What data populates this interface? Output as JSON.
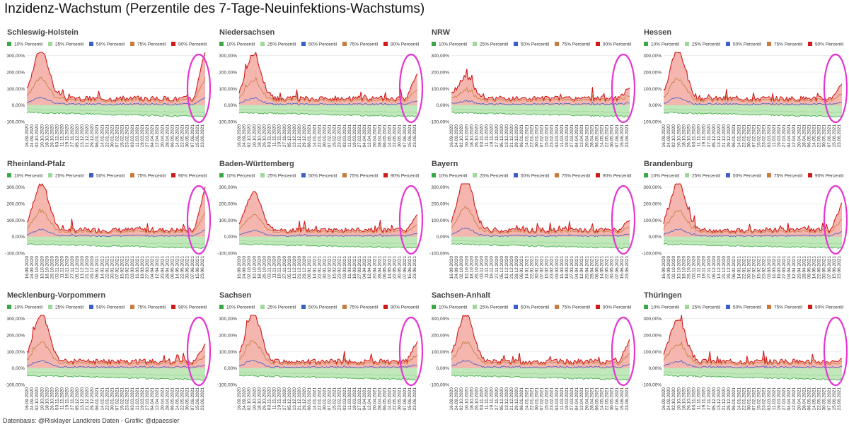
{
  "title": "Inzidenz-Wachstum (Perzentile des 7-Tage-Neuinfektions-Wachstums)",
  "footer": "Datenbasis: @Risklayer Landkreis Daten - Grafik: @dpaessler",
  "colors": {
    "p10": "#3aa846",
    "p25": "#9ed89a",
    "p50": "#3a5fc8",
    "p75": "#c87b3b",
    "p90": "#d11a1a",
    "band_upper": "#f2a9a0",
    "band_lower": "#b9e6b3",
    "highlight": "#e535d2"
  },
  "chart_data": [
    {
      "type": "area",
      "title": "Schleswig-Holstein",
      "series": [
        {
          "name": "10% Percentil"
        },
        {
          "name": "25% Percentil"
        },
        {
          "name": "50% Percentil"
        },
        {
          "name": "75% Percentil"
        },
        {
          "name": "90% Percentil"
        }
      ],
      "y_ticks": [
        "300,00%",
        "200,00%",
        "100,00%",
        "0,00%",
        "-100,00%"
      ],
      "ylim": [
        -100,
        320
      ],
      "x_ticks": [
        "16.09.2020",
        "24.09.2020",
        "02.10.2020",
        "10.10.2020",
        "18.10.2020",
        "26.10.2020",
        "03.11.2020",
        "11.11.2020",
        "19.11.2020",
        "27.11.2020",
        "05.12.2020",
        "13.12.2020",
        "21.12.2020",
        "29.12.2020",
        "06.01.2021",
        "14.01.2021",
        "22.01.2021",
        "30.01.2021",
        "07.02.2021",
        "15.02.2021",
        "23.02.2021",
        "03.03.2021",
        "11.03.2021",
        "19.03.2021",
        "27.03.2021",
        "04.04.2021",
        "12.04.2021",
        "20.04.2021",
        "28.04.2021",
        "06.05.2021",
        "14.05.2021",
        "22.05.2021",
        "30.05.2021",
        "07.06.2021",
        "15.06.2021",
        "23.06.2021"
      ],
      "peak": 340,
      "ending": 340
    },
    {
      "type": "area",
      "title": "Niedersachsen",
      "series": [
        {
          "name": "10% Percentil"
        },
        {
          "name": "25% Percentil"
        },
        {
          "name": "50% Percentil"
        },
        {
          "name": "75% Percentil"
        },
        {
          "name": "90% Percentil"
        }
      ],
      "y_ticks": [
        "300,00%",
        "200,00%",
        "100,00%",
        "0,00%",
        "-100,00%"
      ],
      "ylim": [
        -100,
        320
      ],
      "x_ticks": [
        "16.09.2020",
        "24.09.2020",
        "02.10.2020",
        "10.10.2020",
        "18.10.2020",
        "26.10.2020",
        "03.11.2020",
        "11.11.2020",
        "19.11.2020",
        "27.11.2020",
        "05.12.2020",
        "13.12.2020",
        "21.12.2020",
        "29.12.2020",
        "06.01.2021",
        "14.01.2021",
        "22.01.2021",
        "30.01.2021",
        "07.02.2021",
        "15.02.2021",
        "23.02.2021",
        "03.03.2021",
        "11.03.2021",
        "19.03.2021",
        "27.03.2021",
        "04.04.2021",
        "12.04.2021",
        "20.04.2021",
        "28.04.2021",
        "06.05.2021",
        "14.05.2021",
        "22.05.2021",
        "30.05.2021",
        "07.06.2021",
        "15.06.2021",
        "23.06.2021"
      ],
      "peak": 310,
      "ending": 200
    },
    {
      "type": "area",
      "title": "NRW",
      "series": [
        {
          "name": "10% Percentil"
        },
        {
          "name": "25% Percentil"
        },
        {
          "name": "50% Percentil"
        },
        {
          "name": "75% Percentil"
        },
        {
          "name": "90% Percentil"
        }
      ],
      "y_ticks": [
        "300,00%",
        "200,00%",
        "100,00%",
        "0,00%",
        "-100,00%"
      ],
      "ylim": [
        -100,
        320
      ],
      "x_ticks": [
        "16.09.2020",
        "24.09.2020",
        "02.10.2020",
        "10.10.2020",
        "18.10.2020",
        "26.10.2020",
        "03.11.2020",
        "11.11.2020",
        "19.11.2020",
        "27.11.2020",
        "05.12.2020",
        "13.12.2020",
        "21.12.2020",
        "29.12.2020",
        "06.01.2021",
        "14.01.2021",
        "22.01.2021",
        "30.01.2021",
        "07.02.2021",
        "15.02.2021",
        "23.02.2021",
        "03.03.2021",
        "11.03.2021",
        "19.03.2021",
        "27.03.2021",
        "04.04.2021",
        "12.04.2021",
        "20.04.2021",
        "28.04.2021",
        "06.05.2021",
        "14.05.2021",
        "22.05.2021",
        "30.05.2021",
        "07.06.2021",
        "15.06.2021",
        "23.06.2021"
      ],
      "peak": 170,
      "ending": 110
    },
    {
      "type": "area",
      "title": "Hessen",
      "series": [
        {
          "name": "10% Percentil"
        },
        {
          "name": "25% Percentil"
        },
        {
          "name": "50% Percentil"
        },
        {
          "name": "75% Percentil"
        },
        {
          "name": "90% Percentil"
        }
      ],
      "y_ticks": [
        "300,00%",
        "200,00%",
        "100,00%",
        "0,00%",
        "-100,00%"
      ],
      "ylim": [
        -100,
        320
      ],
      "x_ticks": [
        "16.09.2020",
        "24.09.2020",
        "02.10.2020",
        "10.10.2020",
        "18.10.2020",
        "26.10.2020",
        "03.11.2020",
        "11.11.2020",
        "19.11.2020",
        "27.11.2020",
        "05.12.2020",
        "13.12.2020",
        "21.12.2020",
        "29.12.2020",
        "06.01.2021",
        "14.01.2021",
        "22.01.2021",
        "30.01.2021",
        "07.02.2021",
        "15.02.2021",
        "23.02.2021",
        "03.03.2021",
        "11.03.2021",
        "19.03.2021",
        "27.03.2021",
        "04.04.2021",
        "12.04.2021",
        "20.04.2021",
        "28.04.2021",
        "06.05.2021",
        "14.05.2021",
        "22.05.2021",
        "30.05.2021",
        "07.06.2021",
        "15.06.2021",
        "23.06.2021"
      ],
      "peak": 330,
      "ending": 130
    },
    {
      "type": "area",
      "title": "Rheinland-Pfalz",
      "series": [
        {
          "name": "10% Percentil"
        },
        {
          "name": "25% Percentil"
        },
        {
          "name": "50% Percentil"
        },
        {
          "name": "75% Percentil"
        },
        {
          "name": "90% Percentil"
        }
      ],
      "y_ticks": [
        "300,00%",
        "200,00%",
        "100,00%",
        "0,00%",
        "-100,00%"
      ],
      "ylim": [
        -100,
        320
      ],
      "x_ticks": [
        "16.09.2020",
        "24.09.2020",
        "02.10.2020",
        "10.10.2020",
        "18.10.2020",
        "26.10.2020",
        "03.11.2020",
        "11.11.2020",
        "19.11.2020",
        "27.11.2020",
        "05.12.2020",
        "13.12.2020",
        "21.12.2020",
        "29.12.2020",
        "06.01.2021",
        "14.01.2021",
        "22.01.2021",
        "30.01.2021",
        "07.02.2021",
        "15.02.2021",
        "23.02.2021",
        "03.03.2021",
        "11.03.2021",
        "19.03.2021",
        "27.03.2021",
        "04.04.2021",
        "12.04.2021",
        "20.04.2021",
        "28.04.2021",
        "06.05.2021",
        "14.05.2021",
        "22.05.2021",
        "30.05.2021",
        "07.06.2021",
        "15.06.2021",
        "23.06.2021"
      ],
      "peak": 320,
      "ending": 300
    },
    {
      "type": "area",
      "title": "Baden-Württemberg",
      "series": [
        {
          "name": "10% Percentil"
        },
        {
          "name": "25% Percentil"
        },
        {
          "name": "50% Percentil"
        },
        {
          "name": "75% Percentil"
        },
        {
          "name": "90% Percentil"
        }
      ],
      "y_ticks": [
        "300,00%",
        "200,00%",
        "100,00%",
        "0,00%",
        "-100,00%"
      ],
      "ylim": [
        -100,
        320
      ],
      "x_ticks": [
        "16.09.2020",
        "24.09.2020",
        "02.10.2020",
        "10.10.2020",
        "18.10.2020",
        "26.10.2020",
        "03.11.2020",
        "11.11.2020",
        "19.11.2020",
        "27.11.2020",
        "05.12.2020",
        "13.12.2020",
        "21.12.2020",
        "29.12.2020",
        "06.01.2021",
        "14.01.2021",
        "22.01.2021",
        "30.01.2021",
        "07.02.2021",
        "15.02.2021",
        "23.02.2021",
        "03.03.2021",
        "11.03.2021",
        "19.03.2021",
        "27.03.2021",
        "04.04.2021",
        "12.04.2021",
        "20.04.2021",
        "28.04.2021",
        "06.05.2021",
        "14.05.2021",
        "22.05.2021",
        "30.05.2021",
        "07.06.2021",
        "15.06.2021",
        "23.06.2021"
      ],
      "peak": 270,
      "ending": 130
    },
    {
      "type": "area",
      "title": "Bayern",
      "series": [
        {
          "name": "10% Percentil"
        },
        {
          "name": "25% Percentil"
        },
        {
          "name": "50% Percentil"
        },
        {
          "name": "75% Percentil"
        },
        {
          "name": "90% Percentil"
        }
      ],
      "y_ticks": [
        "300,00%",
        "200,00%",
        "100,00%",
        "0,00%",
        "-100,00%"
      ],
      "ylim": [
        -100,
        320
      ],
      "x_ticks": [
        "16.09.2020",
        "24.09.2020",
        "02.10.2020",
        "10.10.2020",
        "18.10.2020",
        "26.10.2020",
        "03.11.2020",
        "11.11.2020",
        "19.11.2020",
        "27.11.2020",
        "05.12.2020",
        "13.12.2020",
        "21.12.2020",
        "29.12.2020",
        "06.01.2021",
        "14.01.2021",
        "22.01.2021",
        "30.01.2021",
        "07.02.2021",
        "15.02.2021",
        "23.02.2021",
        "03.03.2021",
        "11.03.2021",
        "19.03.2021",
        "27.03.2021",
        "04.04.2021",
        "12.04.2021",
        "20.04.2021",
        "28.04.2021",
        "06.05.2021",
        "14.05.2021",
        "22.05.2021",
        "30.05.2021",
        "07.06.2021",
        "15.06.2021",
        "23.06.2021"
      ],
      "peak": 360,
      "ending": 100
    },
    {
      "type": "area",
      "title": "Brandenburg",
      "series": [
        {
          "name": "10% Percentil"
        },
        {
          "name": "25% Percentil"
        },
        {
          "name": "50% Percentil"
        },
        {
          "name": "75% Percentil"
        },
        {
          "name": "90% Percentil"
        }
      ],
      "y_ticks": [
        "300,00%",
        "200,00%",
        "100,00%",
        "0,00%",
        "-100,00%"
      ],
      "ylim": [
        -100,
        320
      ],
      "x_ticks": [
        "16.09.2020",
        "24.09.2020",
        "02.10.2020",
        "10.10.2020",
        "18.10.2020",
        "26.10.2020",
        "03.11.2020",
        "11.11.2020",
        "19.11.2020",
        "27.11.2020",
        "05.12.2020",
        "13.12.2020",
        "21.12.2020",
        "29.12.2020",
        "06.01.2021",
        "14.01.2021",
        "22.01.2021",
        "30.01.2021",
        "07.02.2021",
        "15.02.2021",
        "23.02.2021",
        "03.03.2021",
        "11.03.2021",
        "19.03.2021",
        "27.03.2021",
        "04.04.2021",
        "12.04.2021",
        "20.04.2021",
        "28.04.2021",
        "06.05.2021",
        "14.05.2021",
        "22.05.2021",
        "30.05.2021",
        "07.06.2021",
        "15.06.2021",
        "23.06.2021"
      ],
      "peak": 330,
      "ending": 200
    },
    {
      "type": "area",
      "title": "Mecklenburg-Vorpommern",
      "series": [
        {
          "name": "10% Percentil"
        },
        {
          "name": "25% Percentil"
        },
        {
          "name": "50% Percentil"
        },
        {
          "name": "75% Percentil"
        },
        {
          "name": "90% Percentil"
        }
      ],
      "y_ticks": [
        "300,00%",
        "200,00%",
        "100,00%",
        "0,00%",
        "-100,00%"
      ],
      "ylim": [
        -100,
        320
      ],
      "x_ticks": [
        "16.09.2020",
        "24.09.2020",
        "02.10.2020",
        "10.10.2020",
        "18.10.2020",
        "26.10.2020",
        "03.11.2020",
        "11.11.2020",
        "19.11.2020",
        "27.11.2020",
        "05.12.2020",
        "13.12.2020",
        "21.12.2020",
        "29.12.2020",
        "06.01.2021",
        "14.01.2021",
        "22.01.2021",
        "30.01.2021",
        "07.02.2021",
        "15.02.2021",
        "23.02.2021",
        "03.03.2021",
        "11.03.2021",
        "19.03.2021",
        "27.03.2021",
        "04.04.2021",
        "12.04.2021",
        "20.04.2021",
        "28.04.2021",
        "06.05.2021",
        "14.05.2021",
        "22.05.2021",
        "30.05.2021",
        "07.06.2021",
        "15.06.2021",
        "23.06.2021"
      ],
      "peak": 330,
      "ending": 150
    },
    {
      "type": "area",
      "title": "Sachsen",
      "series": [
        {
          "name": "10% Percentil"
        },
        {
          "name": "25% Percentil"
        },
        {
          "name": "50% Percentil"
        },
        {
          "name": "75% Percentil"
        },
        {
          "name": "90% Percentil"
        }
      ],
      "y_ticks": [
        "300,00%",
        "200,00%",
        "100,00%",
        "0,00%",
        "-100,00%"
      ],
      "ylim": [
        -100,
        320
      ],
      "x_ticks": [
        "16.09.2020",
        "24.09.2020",
        "02.10.2020",
        "10.10.2020",
        "18.10.2020",
        "26.10.2020",
        "03.11.2020",
        "11.11.2020",
        "19.11.2020",
        "27.11.2020",
        "05.12.2020",
        "13.12.2020",
        "21.12.2020",
        "29.12.2020",
        "06.01.2021",
        "14.01.2021",
        "22.01.2021",
        "30.01.2021",
        "07.02.2021",
        "15.02.2021",
        "23.02.2021",
        "03.03.2021",
        "11.03.2021",
        "19.03.2021",
        "27.03.2021",
        "04.04.2021",
        "12.04.2021",
        "20.04.2021",
        "28.04.2021",
        "06.05.2021",
        "14.05.2021",
        "22.05.2021",
        "30.05.2021",
        "07.06.2021",
        "15.06.2021",
        "23.06.2021"
      ],
      "peak": 330,
      "ending": 170
    },
    {
      "type": "area",
      "title": "Sachsen-Anhalt",
      "series": [
        {
          "name": "10% Percentil"
        },
        {
          "name": "25% Percentil"
        },
        {
          "name": "50% Percentil"
        },
        {
          "name": "75% Percentil"
        },
        {
          "name": "90% Percentil"
        }
      ],
      "y_ticks": [
        "300,00%",
        "200,00%",
        "100,00%",
        "0,00%",
        "-100,00%"
      ],
      "ylim": [
        -100,
        320
      ],
      "x_ticks": [
        "16.09.2020",
        "24.09.2020",
        "02.10.2020",
        "10.10.2020",
        "18.10.2020",
        "26.10.2020",
        "03.11.2020",
        "11.11.2020",
        "19.11.2020",
        "27.11.2020",
        "05.12.2020",
        "13.12.2020",
        "21.12.2020",
        "29.12.2020",
        "06.01.2021",
        "14.01.2021",
        "22.01.2021",
        "30.01.2021",
        "07.02.2021",
        "15.02.2021",
        "23.02.2021",
        "03.03.2021",
        "11.03.2021",
        "19.03.2021",
        "27.03.2021",
        "04.04.2021",
        "12.04.2021",
        "20.04.2021",
        "28.04.2021",
        "06.05.2021",
        "14.05.2021",
        "22.05.2021",
        "30.05.2021",
        "07.06.2021",
        "15.06.2021",
        "23.06.2021"
      ],
      "peak": 330,
      "ending": 170
    },
    {
      "type": "area",
      "title": "Thüringen",
      "series": [
        {
          "name": "10% Percentil"
        },
        {
          "name": "25% Percentil"
        },
        {
          "name": "50% Percentil"
        },
        {
          "name": "75% Percentil"
        },
        {
          "name": "90% Percentil"
        }
      ],
      "y_ticks": [
        "300,00%",
        "200,00%",
        "100,00%",
        "0,00%",
        "-100,00%"
      ],
      "ylim": [
        -100,
        320
      ],
      "x_ticks": [
        "16.09.2020",
        "24.09.2020",
        "02.10.2020",
        "10.10.2020",
        "18.10.2020",
        "26.10.2020",
        "03.11.2020",
        "11.11.2020",
        "19.11.2020",
        "27.11.2020",
        "05.12.2020",
        "13.12.2020",
        "21.12.2020",
        "29.12.2020",
        "06.01.2021",
        "14.01.2021",
        "22.01.2021",
        "30.01.2021",
        "07.02.2021",
        "15.02.2021",
        "23.02.2021",
        "03.03.2021",
        "11.03.2021",
        "19.03.2021",
        "27.03.2021",
        "04.04.2021",
        "12.04.2021",
        "20.04.2021",
        "28.04.2021",
        "06.05.2021",
        "14.05.2021",
        "22.05.2021",
        "30.05.2021",
        "07.06.2021",
        "15.06.2021",
        "23.06.2021"
      ],
      "peak": 300,
      "ending": 50
    }
  ]
}
